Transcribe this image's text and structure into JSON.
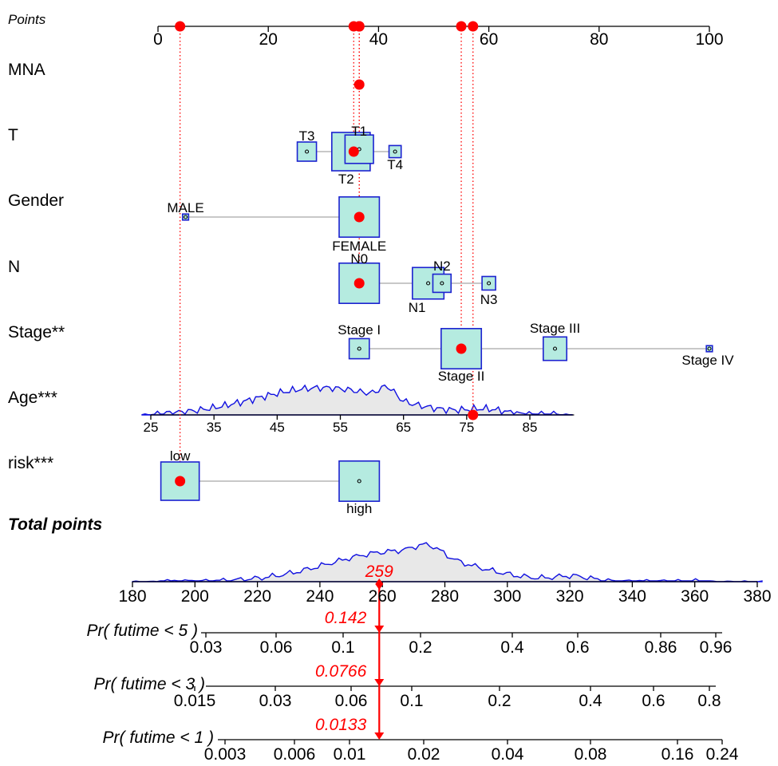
{
  "chart_data": {
    "type": "nomogram",
    "points_axis": {
      "label": "Points",
      "ticks": [
        0,
        20,
        40,
        60,
        80,
        100
      ],
      "range": [
        0,
        100
      ]
    },
    "variables": [
      {
        "name": "MNA",
        "type": "categorical",
        "categories": [],
        "selected_points": 36.5
      },
      {
        "name": "T",
        "type": "categorical",
        "categories": [
          {
            "label": "T3",
            "points": 27,
            "freq": 0.1
          },
          {
            "label": "T1",
            "points": 36.5,
            "freq": 0.22
          },
          {
            "label": "T2",
            "points": 35,
            "freq": 0.4
          },
          {
            "label": "T4",
            "points": 43,
            "freq": 0.04
          }
        ],
        "selected_points": 35.5
      },
      {
        "name": "Gender",
        "type": "categorical",
        "categories": [
          {
            "label": "MALE",
            "points": 5,
            "freq": 0.01
          },
          {
            "label": "FEMALE",
            "points": 36.5,
            "freq": 0.44
          }
        ],
        "selected_points": 36.5
      },
      {
        "name": "N",
        "type": "categorical",
        "categories": [
          {
            "label": "N0",
            "points": 36.5,
            "freq": 0.44
          },
          {
            "label": "N1",
            "points": 49,
            "freq": 0.27
          },
          {
            "label": "N2",
            "points": 51.5,
            "freq": 0.09
          },
          {
            "label": "N3",
            "points": 60,
            "freq": 0.05
          }
        ],
        "selected_points": 36.5
      },
      {
        "name": "Stage**",
        "type": "categorical",
        "categories": [
          {
            "label": "Stage I",
            "points": 36.5,
            "freq": 0.11
          },
          {
            "label": "Stage II",
            "points": 55,
            "freq": 0.44
          },
          {
            "label": "Stage III",
            "points": 72,
            "freq": 0.15
          },
          {
            "label": "Stage IV",
            "points": 100,
            "freq": 0.01
          }
        ],
        "selected_points": 55
      },
      {
        "name": "Age***",
        "type": "continuous",
        "ticks": [
          25,
          35,
          45,
          55,
          65,
          75,
          85
        ],
        "range": [
          25,
          92
        ],
        "selected_value": 76
      },
      {
        "name": "risk***",
        "type": "categorical",
        "categories": [
          {
            "label": "low",
            "points": 4,
            "freq": 0.4
          },
          {
            "label": "high",
            "points": 36.5,
            "freq": 0.44
          }
        ],
        "selected_points": 4
      }
    ],
    "total_points": {
      "label": "Total points",
      "ticks": [
        180,
        200,
        220,
        240,
        260,
        280,
        300,
        320,
        340,
        360,
        380
      ],
      "range": [
        180,
        380
      ],
      "value": 259,
      "value_label": "259"
    },
    "probability_axes": [
      {
        "label": "Pr( futime < 5 )",
        "ticks": [
          "0.03",
          "0.06",
          "0.1",
          "0.2",
          "0.4",
          "0.6",
          "0.86",
          "0.96"
        ],
        "value_label": "0.142"
      },
      {
        "label": "Pr( futime < 3 )",
        "ticks": [
          "0.015",
          "0.03",
          "0.06",
          "0.1",
          "0.2",
          "0.4",
          "0.6",
          "0.8"
        ],
        "value_label": "0.0766"
      },
      {
        "label": "Pr( futime < 1 )",
        "ticks": [
          "0.003",
          "0.006",
          "0.01",
          "0.02",
          "0.04",
          "0.08",
          "0.16",
          "0.24"
        ],
        "value_label": "0.0133"
      }
    ],
    "colors": {
      "box_fill": "#b5ebe0",
      "box_stroke": "#1c22d0",
      "density_line": "#1010e0",
      "density_fill": "#e8e8e8",
      "highlight": "#ff0000"
    }
  }
}
